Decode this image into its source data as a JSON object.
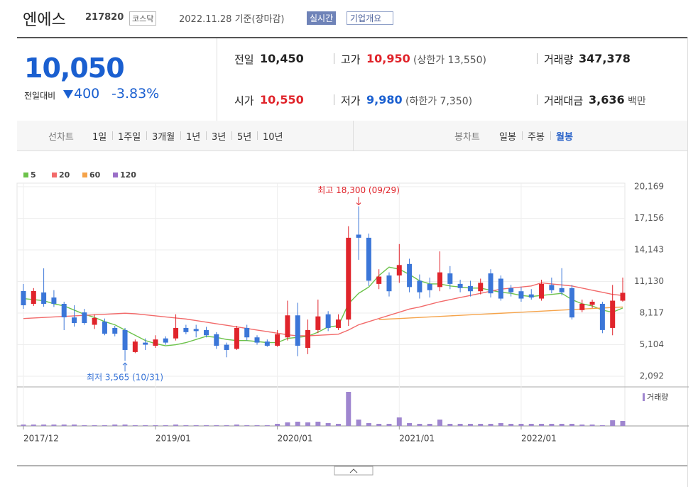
{
  "header": {
    "name": "엔에스",
    "code": "217820",
    "market": "코스닥",
    "date": "2022.11.28 기준(장마감)",
    "realtime": "실시간",
    "overview": "기업개요"
  },
  "quote": {
    "price": "10,050",
    "change_label": "전일대비",
    "change": "400",
    "change_pct": "-3.83%"
  },
  "stats": [
    {
      "label": "전일",
      "value": "10,450"
    },
    {
      "label": "고가",
      "value": "10,950",
      "extra": "(상한가 13,550)"
    },
    {
      "label": "거래량",
      "value": "347,378"
    },
    {
      "label": "시가",
      "value": "10,550"
    },
    {
      "label": "저가",
      "value": "9,980",
      "extra": "(하한가 7,350)"
    },
    {
      "label": "거래대금",
      "value": "3,636",
      "extra": "백만"
    }
  ],
  "tabs": {
    "line_label": "선차트",
    "line_items": [
      "1일",
      "1주일",
      "3개월",
      "1년",
      "3년",
      "5년",
      "10년"
    ],
    "candle_label": "봉차트",
    "candle_items": [
      "일봉",
      "주봉",
      "월봉"
    ],
    "active": "월봉"
  },
  "chart_data": {
    "type": "candlestick",
    "categories": [
      "2017/12",
      null,
      null,
      null,
      null,
      null,
      null,
      null,
      null,
      null,
      null,
      null,
      null,
      "2019/01",
      null,
      null,
      null,
      null,
      null,
      null,
      null,
      null,
      null,
      null,
      null,
      "2020/01",
      null,
      null,
      null,
      null,
      null,
      null,
      null,
      null,
      null,
      null,
      null,
      "2021/01",
      null,
      null,
      null,
      null,
      null,
      null,
      null,
      null,
      null,
      null,
      null,
      "2022/01",
      null,
      null,
      null,
      null,
      null,
      null,
      null,
      null,
      null,
      null
    ],
    "open": [
      10216,
      8997,
      10081,
      9600,
      8997,
      7700,
      8180,
      7000,
      7300,
      6700,
      6500,
      4400,
      5300,
      5000,
      5700,
      5700,
      6700,
      6600,
      6500,
      6100,
      5100,
      4700,
      6700,
      5800,
      5400,
      5000,
      5800,
      7900,
      4800,
      6500,
      8000,
      6700,
      7500,
      15600,
      15300,
      10900,
      11700,
      11700,
      12800,
      11200,
      10900,
      10600,
      11900,
      10900,
      10700,
      10200,
      11900,
      11400,
      10500,
      10200,
      9900,
      9500,
      10800,
      10500,
      10500,
      8400,
      8900,
      9000,
      6700,
      9300
    ],
    "high": [
      10893,
      10500,
      12382,
      10300,
      9200,
      8860,
      8520,
      8000,
      7600,
      6900,
      6700,
      5600,
      5700,
      6000,
      5900,
      8000,
      7000,
      7000,
      6800,
      6300,
      5300,
      6900,
      7000,
      6000,
      5600,
      6500,
      9300,
      9100,
      7500,
      9400,
      8300,
      8000,
      16400,
      18300,
      15700,
      12300,
      12000,
      14700,
      13300,
      11800,
      11500,
      14000,
      12600,
      11300,
      11200,
      11400,
      12300,
      11700,
      10800,
      10600,
      10400,
      11300,
      11500,
      12400,
      10800,
      9400,
      9400,
      9200,
      10800,
      11500
    ],
    "low": [
      8524,
      8800,
      8726,
      8700,
      6493,
      6830,
      7000,
      6600,
      6000,
      5900,
      3565,
      4300,
      4600,
      4800,
      5100,
      5500,
      6100,
      5800,
      5800,
      4700,
      3900,
      4600,
      5500,
      5100,
      4900,
      4900,
      5500,
      4000,
      4200,
      6200,
      6400,
      6500,
      6900,
      13200,
      10700,
      10400,
      9700,
      11000,
      10100,
      9500,
      9600,
      10200,
      10400,
      10100,
      9700,
      9900,
      9600,
      9300,
      9700,
      9200,
      9400,
      9300,
      10000,
      9800,
      7500,
      8200,
      8600,
      6200,
      6000,
      9200
    ],
    "close": [
      8862,
      10216,
      8997,
      9000,
      7711,
      7170,
      7170,
      7650,
      6150,
      6150,
      4600,
      5400,
      5100,
      5600,
      5300,
      6700,
      6300,
      6400,
      6000,
      5000,
      4600,
      6700,
      5800,
      5300,
      5000,
      6100,
      7900,
      5000,
      6500,
      7800,
      6700,
      7500,
      15300,
      15300,
      11200,
      11600,
      10200,
      12700,
      10600,
      10100,
      10300,
      12000,
      10900,
      10500,
      10200,
      11000,
      10000,
      9500,
      10100,
      9500,
      9600,
      10900,
      10300,
      10100,
      7700,
      9000,
      9200,
      6500,
      9300,
      10050
    ],
    "up_color": "#e0242b",
    "down_color": "#3b76d8",
    "ylim": [
      1076,
      20507
    ],
    "yticks": [
      {
        "value": 2092,
        "label": "2,092"
      },
      {
        "value": 5104,
        "label": "5,104"
      },
      {
        "value": 8117,
        "label": "8,117"
      },
      {
        "value": 11130,
        "label": "11,130"
      },
      {
        "value": 14143,
        "label": "14,143"
      },
      {
        "value": 17156,
        "label": "17,156"
      },
      {
        "value": 20169,
        "label": "20,169"
      }
    ],
    "grid": true,
    "series": [
      {
        "name": "5",
        "color": "#6cc24a",
        "values": [
          9500,
          9400,
          9300,
          9000,
          8800,
          8400,
          8000,
          7700,
          7300,
          7000,
          6500,
          6000,
          5500,
          5200,
          5000,
          5100,
          5300,
          5600,
          5900,
          5800,
          5600,
          5500,
          5500,
          5400,
          5300,
          5300,
          5700,
          5800,
          5900,
          6300,
          6800,
          6900,
          9000,
          10000,
          10600,
          11700,
          12500,
          12300,
          11800,
          11200,
          10900,
          10900,
          10700,
          10600,
          10500,
          10500,
          10300,
          10100,
          10000,
          9800,
          9700,
          9800,
          9900,
          10000,
          9400,
          9000,
          8800,
          8400,
          8200,
          8600
        ]
      },
      {
        "name": "20",
        "color": "#f26a6a",
        "values": [
          7600,
          7650,
          7700,
          7750,
          7800,
          7850,
          7900,
          7950,
          8000,
          8050,
          8100,
          8050,
          7950,
          7850,
          7750,
          7650,
          7550,
          7400,
          7250,
          7100,
          6950,
          6800,
          6650,
          6500,
          6350,
          6200,
          6050,
          5950,
          5950,
          6000,
          6050,
          6100,
          6500,
          7000,
          7300,
          7600,
          7900,
          8200,
          8500,
          8700,
          8950,
          9200,
          9400,
          9600,
          9800,
          10000,
          10200,
          10400,
          10500,
          10600,
          10700,
          11000,
          10900,
          10800,
          10700,
          10500,
          10300,
          10100,
          9900,
          9800
        ]
      },
      {
        "name": "60",
        "color": "#f5a34a",
        "values": [
          null,
          null,
          null,
          null,
          null,
          null,
          null,
          null,
          null,
          null,
          null,
          null,
          null,
          null,
          null,
          null,
          null,
          null,
          null,
          null,
          null,
          null,
          null,
          null,
          null,
          null,
          null,
          null,
          null,
          null,
          null,
          null,
          null,
          null,
          null,
          7500,
          7550,
          7600,
          7650,
          7700,
          7750,
          7800,
          7850,
          7900,
          7950,
          8000,
          8050,
          8100,
          8150,
          8200,
          8250,
          8300,
          8350,
          8400,
          8450,
          8500,
          8550,
          8600,
          8650,
          8700
        ]
      },
      {
        "name": "120",
        "color": "#9b6fc8",
        "values": [
          null,
          null,
          null,
          null,
          null,
          null,
          null,
          null,
          null,
          null,
          null,
          null,
          null,
          null,
          null,
          null,
          null,
          null,
          null,
          null,
          null,
          null,
          null,
          null,
          null,
          null,
          null,
          null,
          null,
          null,
          null,
          null,
          null,
          null,
          null,
          null,
          null,
          null,
          null,
          null,
          null,
          null,
          null,
          null,
          null,
          null,
          null,
          null,
          null,
          null,
          null,
          null,
          null,
          null,
          null,
          null,
          null,
          null,
          null,
          null
        ]
      }
    ],
    "annotations": [
      {
        "text": "최고 18,300 (09/29)",
        "value": 18300,
        "color": "#e0242b"
      },
      {
        "text": "최저 3,565 (10/31)",
        "value": 3565,
        "color": "#3b76d8"
      }
    ],
    "volume": {
      "name": "거래량",
      "color": "#9f86cf",
      "ylim": [
        0,
        50
      ],
      "values": [
        2,
        2,
        2,
        2,
        2,
        2,
        1,
        1,
        1,
        2,
        2,
        1,
        1,
        1,
        1,
        2,
        1,
        1,
        1,
        1,
        1,
        2,
        1,
        1,
        1,
        3,
        5,
        6,
        5,
        6,
        4,
        3,
        48,
        9,
        4,
        3,
        3,
        12,
        4,
        3,
        3,
        9,
        3,
        3,
        3,
        3,
        3,
        4,
        3,
        3,
        3,
        3,
        3,
        3,
        3,
        2,
        2,
        1,
        8,
        7
      ]
    }
  }
}
